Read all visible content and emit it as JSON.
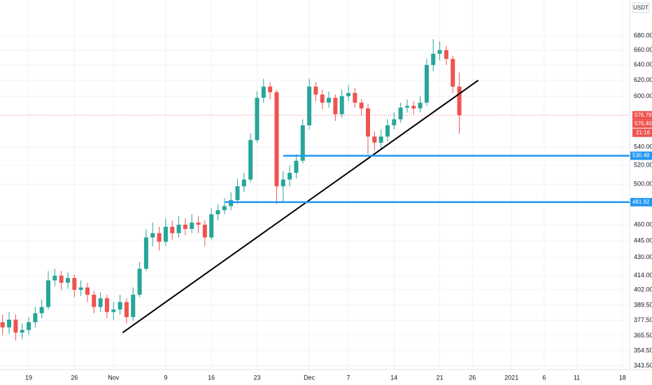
{
  "chart_data": {
    "type": "candlestick",
    "currency": "USDT",
    "log_scale": true,
    "grid": true,
    "up_color": "#26a69a",
    "down_color": "#ef5350",
    "xlim": [
      13.6,
      110.1
    ],
    "xticks": [
      {
        "value": 18,
        "label": "19"
      },
      {
        "value": 25,
        "label": "26"
      },
      {
        "value": 31,
        "label": "Nov"
      },
      {
        "value": 39,
        "label": "9"
      },
      {
        "value": 46,
        "label": "16"
      },
      {
        "value": 53,
        "label": "23"
      },
      {
        "value": 61,
        "label": "Dec"
      },
      {
        "value": 67,
        "label": "7"
      },
      {
        "value": 74,
        "label": "14"
      },
      {
        "value": 81,
        "label": "21"
      },
      {
        "value": 86,
        "label": "26"
      },
      {
        "value": 92,
        "label": "2021"
      },
      {
        "value": 97,
        "label": "6"
      },
      {
        "value": 102,
        "label": "11"
      },
      {
        "value": 109,
        "label": "18"
      }
    ],
    "ylim": [
      340.9,
      732
    ],
    "yticks": [
      {
        "value": 680,
        "label": "680.00"
      },
      {
        "value": 660,
        "label": "660.00"
      },
      {
        "value": 640,
        "label": "640.00"
      },
      {
        "value": 620,
        "label": "620.00"
      },
      {
        "value": 600,
        "label": "600.00"
      },
      {
        "value": 540,
        "label": "540.00"
      },
      {
        "value": 520,
        "label": "520.00"
      },
      {
        "value": 500,
        "label": "500.00"
      },
      {
        "value": 460,
        "label": "460.00"
      },
      {
        "value": 445,
        "label": "445.00"
      },
      {
        "value": 430,
        "label": "430.00"
      },
      {
        "value": 414,
        "label": "414.00"
      },
      {
        "value": 402,
        "label": "402.00"
      },
      {
        "value": 389.5,
        "label": "389.50"
      },
      {
        "value": 377.5,
        "label": "377.50"
      },
      {
        "value": 365.5,
        "label": "365.50"
      },
      {
        "value": 354.5,
        "label": "354.50"
      },
      {
        "value": 343.5,
        "label": "343.50"
      }
    ],
    "x": [
      14,
      15,
      16,
      17,
      18,
      19,
      20,
      21,
      22,
      23,
      24,
      25,
      26,
      27,
      28,
      29,
      30,
      31,
      32,
      33,
      34,
      35,
      36,
      37,
      38,
      39,
      40,
      41,
      42,
      43,
      44,
      45,
      46,
      47,
      48,
      49,
      50,
      51,
      52,
      53,
      54,
      55,
      56,
      57,
      58,
      59,
      60,
      61,
      62,
      63,
      64,
      65,
      66,
      67,
      68,
      69,
      70,
      71,
      72,
      73,
      74,
      75,
      76,
      77,
      78,
      79,
      80,
      81,
      82,
      83,
      84
    ],
    "open": [
      376,
      372,
      378,
      368,
      370,
      376,
      383,
      388,
      410,
      414,
      408,
      412,
      402,
      404,
      398,
      388,
      395,
      384,
      386,
      392,
      380,
      398,
      420,
      448,
      452,
      444,
      458,
      452,
      460,
      456,
      462,
      460,
      448,
      470,
      474,
      478,
      484,
      498,
      505,
      548,
      598,
      612,
      605,
      498,
      505,
      512,
      525,
      565,
      612,
      602,
      592,
      598,
      578,
      600,
      604,
      592,
      585,
      552,
      545,
      552,
      565,
      572,
      586,
      588,
      585,
      592,
      640,
      655,
      660,
      648,
      612
    ],
    "high": [
      382,
      384,
      382,
      375,
      380,
      388,
      394,
      418,
      420,
      418,
      417,
      415,
      410,
      408,
      401,
      400,
      398,
      392,
      398,
      395,
      404,
      426,
      456,
      462,
      458,
      466,
      464,
      468,
      466,
      470,
      468,
      464,
      476,
      480,
      486,
      492,
      506,
      512,
      556,
      606,
      622,
      618,
      608,
      514,
      520,
      532,
      572,
      622,
      618,
      608,
      606,
      602,
      608,
      614,
      610,
      596,
      590,
      558,
      560,
      572,
      580,
      592,
      596,
      594,
      600,
      648,
      675,
      672,
      666,
      652,
      630
    ],
    "low": [
      366,
      367,
      362,
      363,
      366,
      372,
      379,
      386,
      405,
      402,
      403,
      396,
      397,
      392,
      383,
      384,
      379,
      378,
      382,
      375,
      377,
      396,
      418,
      440,
      436,
      440,
      446,
      448,
      450,
      452,
      452,
      440,
      446,
      464,
      470,
      474,
      480,
      492,
      502,
      545,
      592,
      596,
      480,
      482,
      498,
      506,
      522,
      560,
      594,
      584,
      586,
      570,
      574,
      594,
      586,
      576,
      532,
      536,
      538,
      546,
      560,
      568,
      580,
      578,
      580,
      588,
      632,
      646,
      640,
      604,
      555
    ],
    "close": [
      372,
      378,
      368,
      370,
      376,
      383,
      388,
      410,
      414,
      408,
      412,
      402,
      404,
      398,
      388,
      395,
      384,
      386,
      392,
      380,
      398,
      420,
      448,
      452,
      444,
      458,
      452,
      460,
      456,
      462,
      460,
      448,
      470,
      474,
      478,
      484,
      498,
      505,
      548,
      598,
      612,
      605,
      498,
      505,
      512,
      525,
      565,
      612,
      602,
      592,
      598,
      578,
      600,
      604,
      592,
      585,
      552,
      545,
      552,
      565,
      572,
      586,
      588,
      585,
      592,
      640,
      655,
      660,
      648,
      612,
      576.79
    ],
    "last_price": 576.79,
    "last_price_alt": {
      "value": 576.4,
      "label": "576.40"
    },
    "countdown": "21:16",
    "trend_line": {
      "color": "#000000",
      "x": [
        32.4,
        86.9
      ],
      "y": [
        368,
        620
      ]
    },
    "levels": [
      {
        "value": 530.48,
        "start": 57.0,
        "color": "#2196f3"
      },
      {
        "value": 481.92,
        "start": 48.1,
        "color": "#2196f3"
      }
    ]
  }
}
